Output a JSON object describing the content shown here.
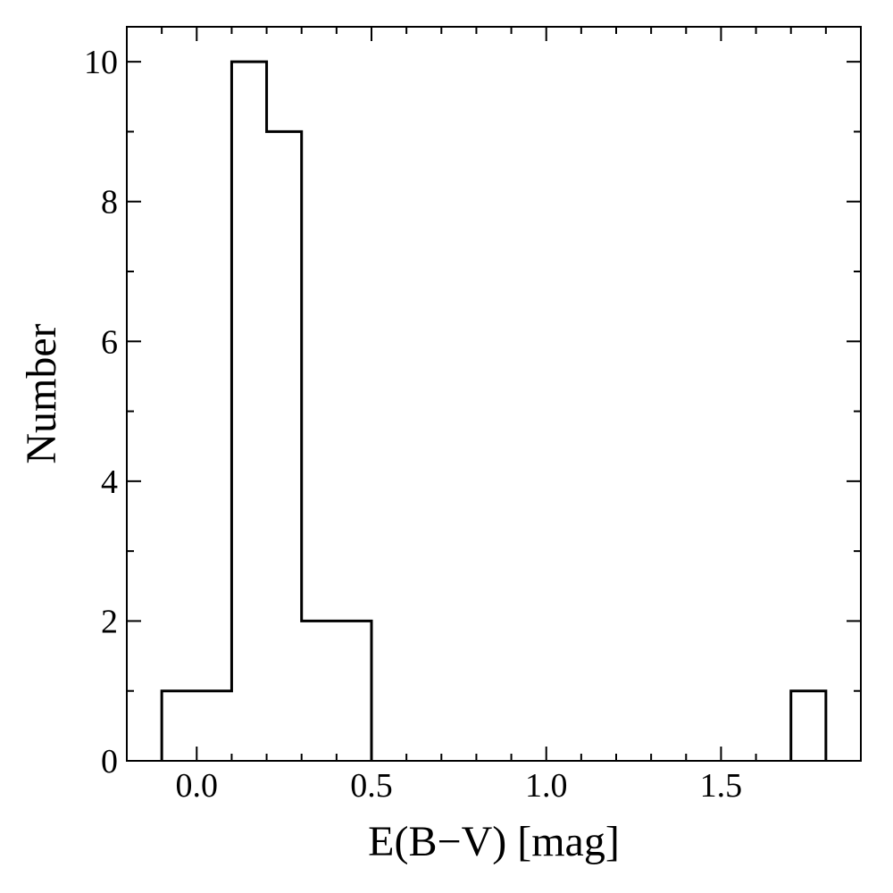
{
  "chart_data": {
    "type": "histogram",
    "xlabel": "E(B−V) [mag]",
    "ylabel": "Number",
    "xlim": [
      -0.2,
      1.9
    ],
    "ylim": [
      0,
      10.5
    ],
    "xticks": [
      "0.0",
      "0.5",
      "1.0",
      "1.5"
    ],
    "xtick_values": [
      0.0,
      0.5,
      1.0,
      1.5
    ],
    "yticks": [
      "0",
      "2",
      "4",
      "6",
      "8",
      "10"
    ],
    "ytick_values": [
      0,
      2,
      4,
      6,
      8,
      10
    ],
    "x_minor_step": 0.1,
    "y_minor_step": 1,
    "bin_edges": [
      -0.1,
      0.0,
      0.1,
      0.2,
      0.3,
      0.4,
      0.5,
      0.6,
      0.7,
      0.8,
      0.9,
      1.0,
      1.1,
      1.2,
      1.3,
      1.4,
      1.5,
      1.6,
      1.7,
      1.8
    ],
    "counts": [
      1,
      1,
      10,
      9,
      2,
      2,
      0,
      0,
      0,
      0,
      0,
      0,
      0,
      0,
      0,
      0,
      0,
      0,
      1
    ],
    "grid": false,
    "line_color": "#000000"
  }
}
